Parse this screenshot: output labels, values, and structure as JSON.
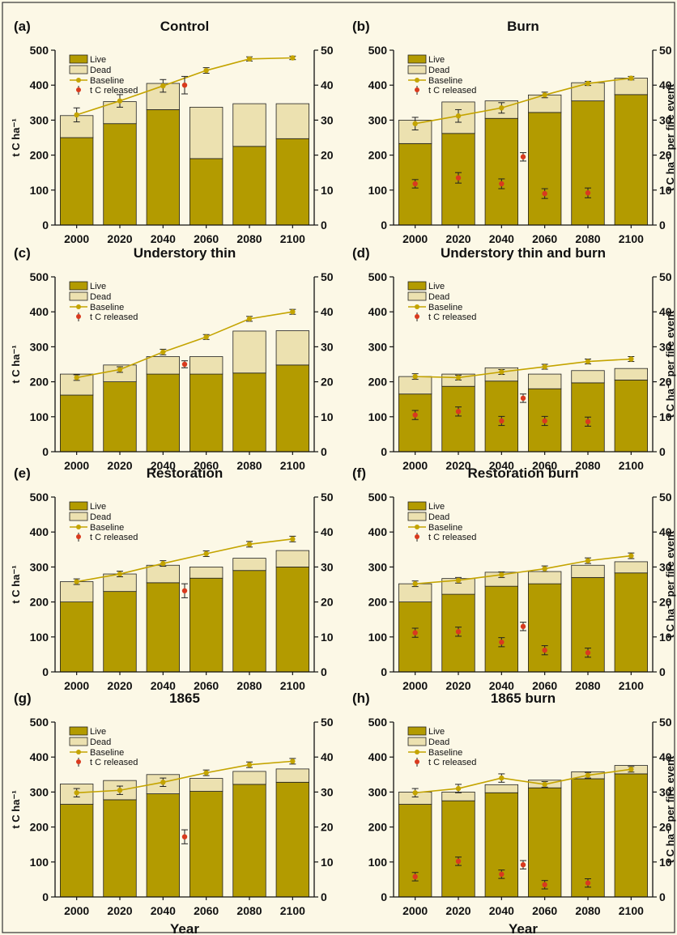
{
  "colors": {
    "live": "#b39b00",
    "dead": "#ece1b0",
    "baseline": "#c4a400",
    "released": "#d93a1e",
    "frame": "#333333"
  },
  "common": {
    "legend": [
      "Live",
      "Dead",
      "Baseline",
      "t C released"
    ],
    "ylabel_left": "t C ha⁻¹",
    "ylabel_right": "t C ha⁻¹ per fire event",
    "xlabel": "Year",
    "categories": [
      "2000",
      "2020",
      "2040",
      "2060",
      "2080",
      "2100"
    ],
    "ylim_left": [
      0,
      500
    ],
    "yticks_left": [
      0,
      100,
      200,
      300,
      400,
      500
    ],
    "ylim_right": [
      0,
      50
    ],
    "yticks_right": [
      0,
      10,
      20,
      30,
      40,
      50
    ]
  },
  "chart_data": [
    {
      "type": "bar",
      "label": "(a)",
      "title": "Control",
      "categories": [
        "2000",
        "2020",
        "2040",
        "2060",
        "2080",
        "2100"
      ],
      "series": [
        {
          "name": "Live",
          "values": [
            250,
            290,
            330,
            190,
            225,
            247
          ]
        },
        {
          "name": "Dead",
          "values": [
            63,
            63,
            75,
            147,
            122,
            100
          ]
        }
      ],
      "baseline": {
        "name": "Baseline",
        "values": [
          315,
          355,
          398,
          442,
          475,
          478
        ],
        "error": [
          20,
          18,
          18,
          8,
          6,
          5
        ]
      },
      "released": {
        "name": "t C released",
        "points": [
          {
            "x": 2050,
            "y": 40,
            "err": 2.5
          }
        ]
      }
    },
    {
      "type": "bar",
      "label": "(b)",
      "title": "Burn",
      "categories": [
        "2000",
        "2020",
        "2040",
        "2060",
        "2080",
        "2100"
      ],
      "series": [
        {
          "name": "Live",
          "values": [
            233,
            262,
            305,
            322,
            355,
            373
          ]
        },
        {
          "name": "Dead",
          "values": [
            67,
            90,
            50,
            50,
            52,
            47
          ]
        }
      ],
      "baseline": {
        "name": "Baseline",
        "values": [
          290,
          312,
          335,
          372,
          405,
          420
        ],
        "error": [
          18,
          18,
          15,
          8,
          6,
          5
        ]
      },
      "released": {
        "name": "t C released",
        "points": [
          {
            "x": 2000,
            "y": 11.8,
            "err": 1.2
          },
          {
            "x": 2020,
            "y": 13.5,
            "err": 1.5
          },
          {
            "x": 2040,
            "y": 11.8,
            "err": 1.4
          },
          {
            "x": 2050,
            "y": 19.5,
            "err": 1.2
          },
          {
            "x": 2060,
            "y": 9,
            "err": 1.4
          },
          {
            "x": 2080,
            "y": 9.2,
            "err": 1.4
          }
        ]
      }
    },
    {
      "type": "bar",
      "label": "(c)",
      "title": "Understory thin",
      "categories": [
        "2000",
        "2020",
        "2040",
        "2060",
        "2080",
        "2100"
      ],
      "series": [
        {
          "name": "Live",
          "values": [
            162,
            200,
            222,
            222,
            225,
            248
          ]
        },
        {
          "name": "Dead",
          "values": [
            60,
            48,
            50,
            50,
            120,
            98
          ]
        }
      ],
      "baseline": {
        "name": "Baseline",
        "values": [
          212,
          235,
          285,
          328,
          380,
          400
        ],
        "error": [
          8,
          8,
          8,
          7,
          7,
          7
        ]
      },
      "released": {
        "name": "t C released",
        "points": [
          {
            "x": 2050,
            "y": 25,
            "err": 1
          }
        ]
      }
    },
    {
      "type": "bar",
      "label": "(d)",
      "title": "Understory thin and burn",
      "categories": [
        "2000",
        "2020",
        "2040",
        "2060",
        "2080",
        "2100"
      ],
      "series": [
        {
          "name": "Live",
          "values": [
            165,
            187,
            202,
            180,
            197,
            205
          ]
        },
        {
          "name": "Dead",
          "values": [
            50,
            35,
            38,
            42,
            35,
            33
          ]
        }
      ],
      "baseline": {
        "name": "Baseline",
        "values": [
          215,
          212,
          228,
          243,
          258,
          265
        ],
        "error": [
          8,
          7,
          7,
          7,
          7,
          7
        ]
      },
      "released": {
        "name": "t C released",
        "points": [
          {
            "x": 2000,
            "y": 10.5,
            "err": 1.3
          },
          {
            "x": 2020,
            "y": 11.5,
            "err": 1.3
          },
          {
            "x": 2040,
            "y": 8.8,
            "err": 1.3
          },
          {
            "x": 2050,
            "y": 15.3,
            "err": 1.2
          },
          {
            "x": 2060,
            "y": 8.8,
            "err": 1.3
          },
          {
            "x": 2080,
            "y": 8.6,
            "err": 1.3
          }
        ]
      }
    },
    {
      "type": "bar",
      "label": "(e)",
      "title": "Restoration",
      "categories": [
        "2000",
        "2020",
        "2040",
        "2060",
        "2080",
        "2100"
      ],
      "series": [
        {
          "name": "Live",
          "values": [
            200,
            230,
            255,
            268,
            290,
            300
          ]
        },
        {
          "name": "Dead",
          "values": [
            58,
            50,
            50,
            32,
            35,
            47
          ]
        }
      ],
      "baseline": {
        "name": "Baseline",
        "values": [
          258,
          280,
          310,
          338,
          365,
          380
        ],
        "error": [
          8,
          8,
          8,
          8,
          8,
          8
        ]
      },
      "released": {
        "name": "t C released",
        "points": [
          {
            "x": 2050,
            "y": 23.2,
            "err": 2
          }
        ]
      }
    },
    {
      "type": "bar",
      "label": "(f)",
      "title": "Restoration burn",
      "categories": [
        "2000",
        "2020",
        "2040",
        "2060",
        "2080",
        "2100"
      ],
      "series": [
        {
          "name": "Live",
          "values": [
            200,
            222,
            245,
            252,
            270,
            283
          ]
        },
        {
          "name": "Dead",
          "values": [
            52,
            45,
            40,
            35,
            35,
            32
          ]
        }
      ],
      "baseline": {
        "name": "Baseline",
        "values": [
          252,
          262,
          278,
          295,
          318,
          332
        ],
        "error": [
          8,
          8,
          8,
          8,
          8,
          8
        ]
      },
      "released": {
        "name": "t C released",
        "points": [
          {
            "x": 2000,
            "y": 11.2,
            "err": 1.3
          },
          {
            "x": 2020,
            "y": 11.5,
            "err": 1.3
          },
          {
            "x": 2040,
            "y": 8.5,
            "err": 1.3
          },
          {
            "x": 2050,
            "y": 13,
            "err": 1.2
          },
          {
            "x": 2060,
            "y": 6.2,
            "err": 1.3
          },
          {
            "x": 2080,
            "y": 5.5,
            "err": 1.3
          }
        ]
      }
    },
    {
      "type": "bar",
      "label": "(g)",
      "title": "1865",
      "categories": [
        "2000",
        "2020",
        "2040",
        "2060",
        "2080",
        "2100"
      ],
      "series": [
        {
          "name": "Live",
          "values": [
            265,
            278,
            295,
            302,
            322,
            328
          ]
        },
        {
          "name": "Dead",
          "values": [
            58,
            55,
            55,
            37,
            37,
            38
          ]
        }
      ],
      "baseline": {
        "name": "Baseline",
        "values": [
          298,
          305,
          328,
          355,
          378,
          388
        ],
        "error": [
          12,
          12,
          12,
          8,
          8,
          8
        ]
      },
      "released": {
        "name": "t C released",
        "points": [
          {
            "x": 2050,
            "y": 17.2,
            "err": 2
          }
        ]
      }
    },
    {
      "type": "bar",
      "label": "(h)",
      "title": "1865 burn",
      "categories": [
        "2000",
        "2020",
        "2040",
        "2060",
        "2080",
        "2100"
      ],
      "series": [
        {
          "name": "Live",
          "values": [
            265,
            275,
            298,
            312,
            338,
            352
          ]
        },
        {
          "name": "Dead",
          "values": [
            35,
            25,
            23,
            22,
            20,
            24
          ]
        }
      ],
      "baseline": {
        "name": "Baseline",
        "values": [
          298,
          310,
          340,
          322,
          348,
          365
        ],
        "error": [
          12,
          12,
          12,
          8,
          8,
          8
        ]
      },
      "released": {
        "name": "t C released",
        "points": [
          {
            "x": 2000,
            "y": 5.8,
            "err": 1.2
          },
          {
            "x": 2020,
            "y": 10.2,
            "err": 1.2
          },
          {
            "x": 2040,
            "y": 6.5,
            "err": 1.2
          },
          {
            "x": 2050,
            "y": 9.2,
            "err": 1.2
          },
          {
            "x": 2060,
            "y": 3.5,
            "err": 1.2
          },
          {
            "x": 2080,
            "y": 4,
            "err": 1.2
          }
        ]
      }
    }
  ]
}
